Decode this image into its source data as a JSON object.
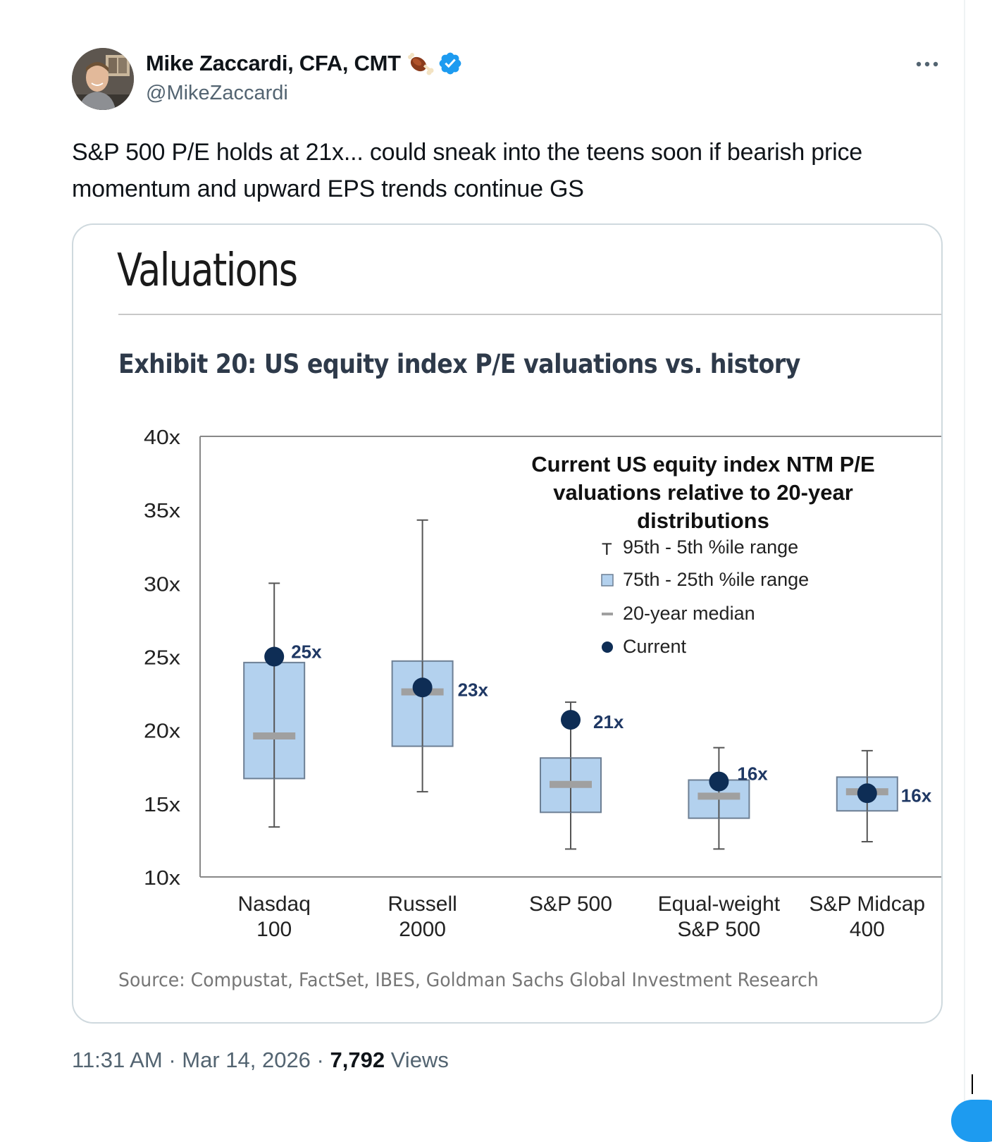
{
  "tweet": {
    "display_name": "Mike Zaccardi, CFA, CMT",
    "handle": "@MikeZaccardi",
    "text": "S&P 500 P/E holds at 21x... could sneak into the teens soon if bearish price momentum and upward EPS trends continue GS",
    "time": "11:31 AM",
    "date": "Mar 14, 2026",
    "views_count": "7,792",
    "views_label": "Views",
    "icons": {
      "emoji": "meat-on-bone-icon",
      "verified": "verified-badge-icon",
      "more": "more-icon"
    },
    "colors": {
      "verified": "#1d9bf0",
      "text": "#0f1419",
      "secondary": "#536471"
    }
  },
  "media": {
    "section_title": "Valuations",
    "source": "Source: Compustat, FactSet, IBES, Goldman Sachs Global Investment Research"
  },
  "chart_data": {
    "type": "box",
    "title": "Exhibit 20: US equity index P/E valuations vs. history",
    "annotation_title": "Current US equity index NTM P/E valuations relative to 20-year distributions",
    "ylim": [
      10,
      40
    ],
    "yticks": [
      "10x",
      "15x",
      "20x",
      "25x",
      "30x",
      "35x",
      "40x"
    ],
    "legend": {
      "placement": "top-right",
      "entries": [
        "95th - 5th %ile range",
        "75th - 25th %ile range",
        "20-year median",
        "Current"
      ]
    },
    "categories": [
      [
        "Nasdaq",
        "100"
      ],
      [
        "Russell",
        "2000"
      ],
      [
        "S&P 500"
      ],
      [
        "Equal-weight",
        "S&P 500"
      ],
      [
        "S&P Midcap",
        "400"
      ]
    ],
    "series": [
      {
        "p5": 13.4,
        "p25": 16.7,
        "median": 19.6,
        "p75": 24.6,
        "p95": 30.0,
        "current": 25.0,
        "label": "25x"
      },
      {
        "p5": 15.8,
        "p25": 18.9,
        "median": 22.6,
        "p75": 24.7,
        "p95": 34.3,
        "current": 22.9,
        "label": "23x"
      },
      {
        "p5": 11.9,
        "p25": 14.4,
        "median": 16.3,
        "p75": 18.1,
        "p95": 21.9,
        "current": 20.7,
        "label": "21x"
      },
      {
        "p5": 11.9,
        "p25": 14.0,
        "median": 15.5,
        "p75": 16.6,
        "p95": 18.8,
        "current": 16.5,
        "label": "16x"
      },
      {
        "p5": 12.4,
        "p25": 14.5,
        "median": 15.8,
        "p75": 16.8,
        "p95": 18.6,
        "current": 15.7,
        "label": "16x"
      }
    ],
    "colors": {
      "box": "#b3d1ee",
      "box_border": "#6d7f94",
      "median": "#a0a0a0",
      "current": "#0e2d55",
      "label": "#1f3864"
    }
  }
}
